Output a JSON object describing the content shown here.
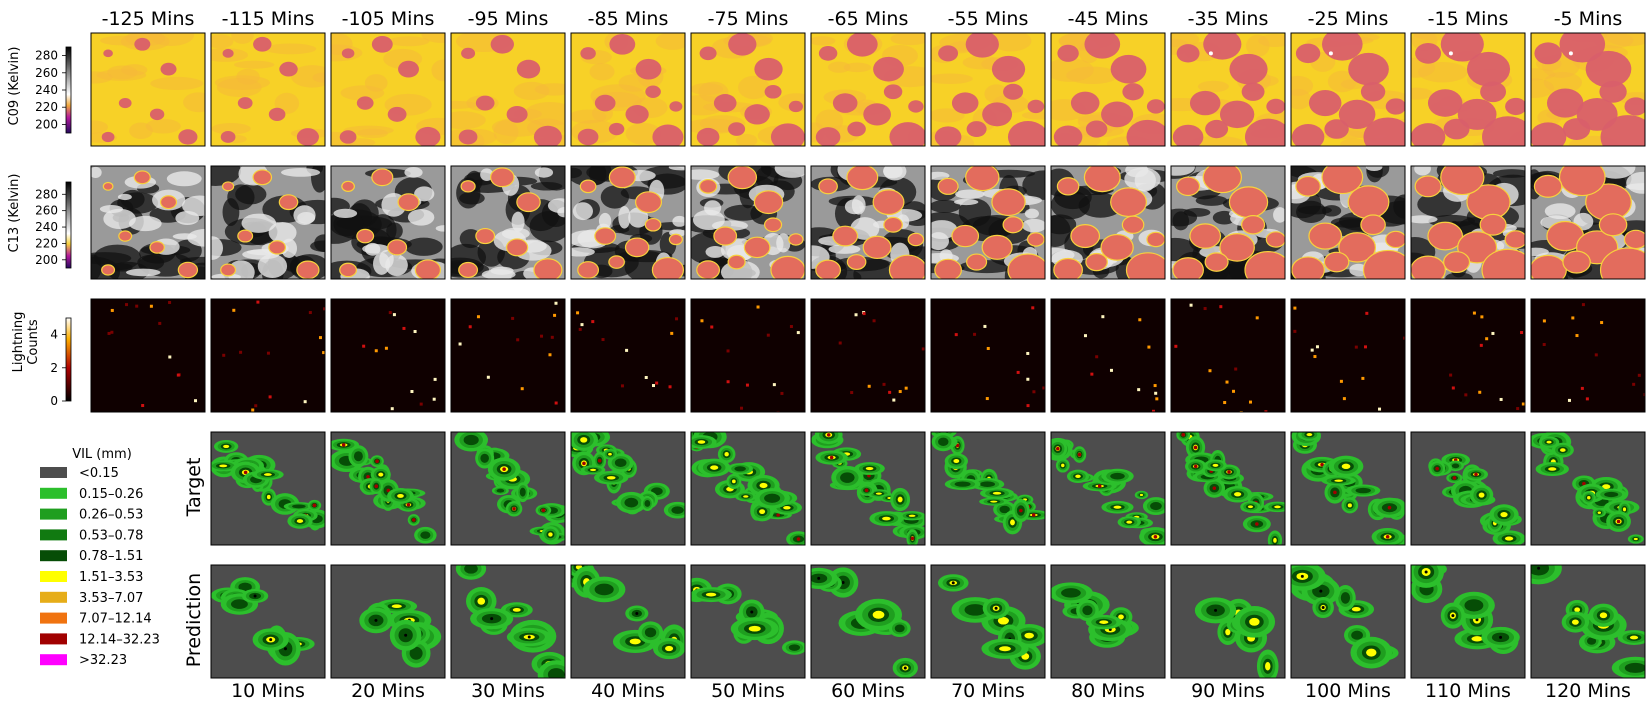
{
  "top_time_labels": [
    "-125 Mins",
    "-115 Mins",
    "-105 Mins",
    "-95 Mins",
    "-85 Mins",
    "-75 Mins",
    "-65 Mins",
    "-55 Mins",
    "-45 Mins",
    "-35 Mins",
    "-25 Mins",
    "-15 Mins",
    "-5 Mins"
  ],
  "bottom_time_labels": [
    "10 Mins",
    "20 Mins",
    "30 Mins",
    "40 Mins",
    "50 Mins",
    "60 Mins",
    "70 Mins",
    "80 Mins",
    "90 Mins",
    "100 Mins",
    "110 Mins",
    "120 Mins"
  ],
  "rows": {
    "c09": {
      "label": "C09 (Kelvin)",
      "ticks": [
        "280",
        "260",
        "240",
        "220",
        "200"
      ]
    },
    "c13": {
      "label": "C13 (Kelvin)",
      "ticks": [
        "280",
        "260",
        "240",
        "220",
        "200"
      ]
    },
    "lightning": {
      "label_line1": "Lightning",
      "label_line2": "Counts",
      "ticks": [
        "4",
        "2",
        "0"
      ]
    },
    "target": {
      "label": "Target"
    },
    "prediction": {
      "label": "Prediction"
    }
  },
  "legend": {
    "title": "VIL (mm)",
    "items": [
      {
        "label": "<0.15",
        "color": "#4d4d4d"
      },
      {
        "label": "0.15–0.26",
        "color": "#2cbf2c"
      },
      {
        "label": "0.26–0.53",
        "color": "#1f9e1f"
      },
      {
        "label": "0.53–0.78",
        "color": "#117a11"
      },
      {
        "label": "0.78–1.51",
        "color": "#064d06"
      },
      {
        "label": "1.51–3.53",
        "color": "#ffff00"
      },
      {
        "label": "3.53–7.07",
        "color": "#e6ad19"
      },
      {
        "label": "7.07–12.14",
        "color": "#f07310"
      },
      {
        "label": "12.14–32.23",
        "color": "#a10000"
      },
      {
        "label": ">32.23",
        "color": "#ff00ff"
      }
    ]
  },
  "chart_data": {
    "type": "heatmap",
    "row_order": [
      "C09 (Kelvin)",
      "C13 (Kelvin)",
      "Lightning Counts",
      "Target",
      "Prediction"
    ],
    "input_times": [
      "-125 Mins",
      "-115 Mins",
      "-105 Mins",
      "-95 Mins",
      "-85 Mins",
      "-75 Mins",
      "-65 Mins",
      "-55 Mins",
      "-45 Mins",
      "-35 Mins",
      "-25 Mins",
      "-15 Mins",
      "-5 Mins"
    ],
    "output_times": [
      "10 Mins",
      "20 Mins",
      "30 Mins",
      "40 Mins",
      "50 Mins",
      "60 Mins",
      "70 Mins",
      "80 Mins",
      "90 Mins",
      "100 Mins",
      "110 Mins",
      "120 Mins"
    ],
    "colorbars": {
      "C09 (Kelvin)": {
        "range": [
          190,
          290
        ],
        "ticks": [
          200,
          220,
          240,
          260,
          280
        ]
      },
      "C13 (Kelvin)": {
        "range": [
          190,
          295
        ],
        "ticks": [
          200,
          220,
          240,
          260,
          280
        ]
      },
      "Lightning Counts": {
        "range": [
          0,
          5
        ],
        "ticks": [
          0,
          2,
          4
        ]
      }
    },
    "vil_bins_mm": [
      0.15,
      0.26,
      0.53,
      0.78,
      1.51,
      3.53,
      7.07,
      12.14,
      32.23
    ]
  }
}
